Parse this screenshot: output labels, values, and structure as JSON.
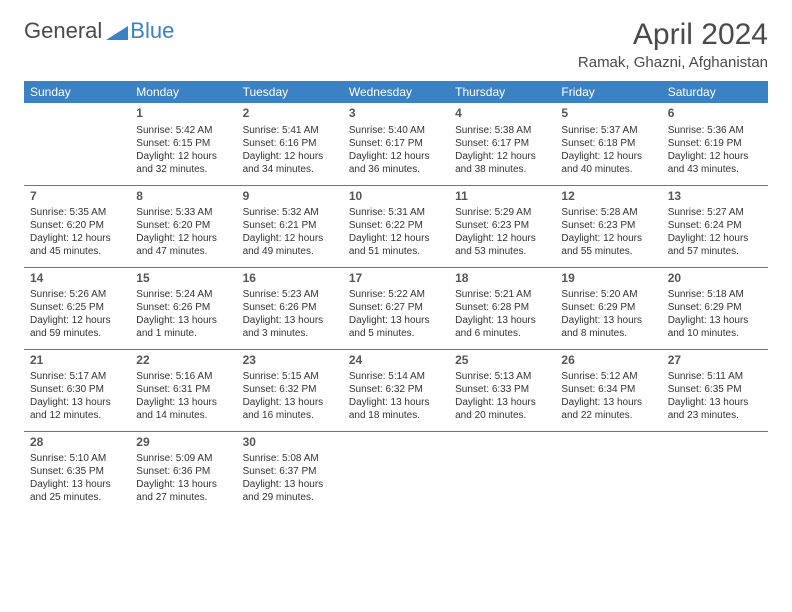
{
  "logo": {
    "text1": "General",
    "text2": "Blue"
  },
  "header": {
    "month_title": "April 2024",
    "location": "Ramak, Ghazni, Afghanistan"
  },
  "colors": {
    "accent": "#3b82c4",
    "text": "#333333",
    "bg": "#ffffff"
  },
  "days_of_week": [
    "Sunday",
    "Monday",
    "Tuesday",
    "Wednesday",
    "Thursday",
    "Friday",
    "Saturday"
  ],
  "weeks": [
    [
      null,
      {
        "n": "1",
        "sr": "Sunrise: 5:42 AM",
        "ss": "Sunset: 6:15 PM",
        "d1": "Daylight: 12 hours",
        "d2": "and 32 minutes."
      },
      {
        "n": "2",
        "sr": "Sunrise: 5:41 AM",
        "ss": "Sunset: 6:16 PM",
        "d1": "Daylight: 12 hours",
        "d2": "and 34 minutes."
      },
      {
        "n": "3",
        "sr": "Sunrise: 5:40 AM",
        "ss": "Sunset: 6:17 PM",
        "d1": "Daylight: 12 hours",
        "d2": "and 36 minutes."
      },
      {
        "n": "4",
        "sr": "Sunrise: 5:38 AM",
        "ss": "Sunset: 6:17 PM",
        "d1": "Daylight: 12 hours",
        "d2": "and 38 minutes."
      },
      {
        "n": "5",
        "sr": "Sunrise: 5:37 AM",
        "ss": "Sunset: 6:18 PM",
        "d1": "Daylight: 12 hours",
        "d2": "and 40 minutes."
      },
      {
        "n": "6",
        "sr": "Sunrise: 5:36 AM",
        "ss": "Sunset: 6:19 PM",
        "d1": "Daylight: 12 hours",
        "d2": "and 43 minutes."
      }
    ],
    [
      {
        "n": "7",
        "sr": "Sunrise: 5:35 AM",
        "ss": "Sunset: 6:20 PM",
        "d1": "Daylight: 12 hours",
        "d2": "and 45 minutes."
      },
      {
        "n": "8",
        "sr": "Sunrise: 5:33 AM",
        "ss": "Sunset: 6:20 PM",
        "d1": "Daylight: 12 hours",
        "d2": "and 47 minutes."
      },
      {
        "n": "9",
        "sr": "Sunrise: 5:32 AM",
        "ss": "Sunset: 6:21 PM",
        "d1": "Daylight: 12 hours",
        "d2": "and 49 minutes."
      },
      {
        "n": "10",
        "sr": "Sunrise: 5:31 AM",
        "ss": "Sunset: 6:22 PM",
        "d1": "Daylight: 12 hours",
        "d2": "and 51 minutes."
      },
      {
        "n": "11",
        "sr": "Sunrise: 5:29 AM",
        "ss": "Sunset: 6:23 PM",
        "d1": "Daylight: 12 hours",
        "d2": "and 53 minutes."
      },
      {
        "n": "12",
        "sr": "Sunrise: 5:28 AM",
        "ss": "Sunset: 6:23 PM",
        "d1": "Daylight: 12 hours",
        "d2": "and 55 minutes."
      },
      {
        "n": "13",
        "sr": "Sunrise: 5:27 AM",
        "ss": "Sunset: 6:24 PM",
        "d1": "Daylight: 12 hours",
        "d2": "and 57 minutes."
      }
    ],
    [
      {
        "n": "14",
        "sr": "Sunrise: 5:26 AM",
        "ss": "Sunset: 6:25 PM",
        "d1": "Daylight: 12 hours",
        "d2": "and 59 minutes."
      },
      {
        "n": "15",
        "sr": "Sunrise: 5:24 AM",
        "ss": "Sunset: 6:26 PM",
        "d1": "Daylight: 13 hours",
        "d2": "and 1 minute."
      },
      {
        "n": "16",
        "sr": "Sunrise: 5:23 AM",
        "ss": "Sunset: 6:26 PM",
        "d1": "Daylight: 13 hours",
        "d2": "and 3 minutes."
      },
      {
        "n": "17",
        "sr": "Sunrise: 5:22 AM",
        "ss": "Sunset: 6:27 PM",
        "d1": "Daylight: 13 hours",
        "d2": "and 5 minutes."
      },
      {
        "n": "18",
        "sr": "Sunrise: 5:21 AM",
        "ss": "Sunset: 6:28 PM",
        "d1": "Daylight: 13 hours",
        "d2": "and 6 minutes."
      },
      {
        "n": "19",
        "sr": "Sunrise: 5:20 AM",
        "ss": "Sunset: 6:29 PM",
        "d1": "Daylight: 13 hours",
        "d2": "and 8 minutes."
      },
      {
        "n": "20",
        "sr": "Sunrise: 5:18 AM",
        "ss": "Sunset: 6:29 PM",
        "d1": "Daylight: 13 hours",
        "d2": "and 10 minutes."
      }
    ],
    [
      {
        "n": "21",
        "sr": "Sunrise: 5:17 AM",
        "ss": "Sunset: 6:30 PM",
        "d1": "Daylight: 13 hours",
        "d2": "and 12 minutes."
      },
      {
        "n": "22",
        "sr": "Sunrise: 5:16 AM",
        "ss": "Sunset: 6:31 PM",
        "d1": "Daylight: 13 hours",
        "d2": "and 14 minutes."
      },
      {
        "n": "23",
        "sr": "Sunrise: 5:15 AM",
        "ss": "Sunset: 6:32 PM",
        "d1": "Daylight: 13 hours",
        "d2": "and 16 minutes."
      },
      {
        "n": "24",
        "sr": "Sunrise: 5:14 AM",
        "ss": "Sunset: 6:32 PM",
        "d1": "Daylight: 13 hours",
        "d2": "and 18 minutes."
      },
      {
        "n": "25",
        "sr": "Sunrise: 5:13 AM",
        "ss": "Sunset: 6:33 PM",
        "d1": "Daylight: 13 hours",
        "d2": "and 20 minutes."
      },
      {
        "n": "26",
        "sr": "Sunrise: 5:12 AM",
        "ss": "Sunset: 6:34 PM",
        "d1": "Daylight: 13 hours",
        "d2": "and 22 minutes."
      },
      {
        "n": "27",
        "sr": "Sunrise: 5:11 AM",
        "ss": "Sunset: 6:35 PM",
        "d1": "Daylight: 13 hours",
        "d2": "and 23 minutes."
      }
    ],
    [
      {
        "n": "28",
        "sr": "Sunrise: 5:10 AM",
        "ss": "Sunset: 6:35 PM",
        "d1": "Daylight: 13 hours",
        "d2": "and 25 minutes."
      },
      {
        "n": "29",
        "sr": "Sunrise: 5:09 AM",
        "ss": "Sunset: 6:36 PM",
        "d1": "Daylight: 13 hours",
        "d2": "and 27 minutes."
      },
      {
        "n": "30",
        "sr": "Sunrise: 5:08 AM",
        "ss": "Sunset: 6:37 PM",
        "d1": "Daylight: 13 hours",
        "d2": "and 29 minutes."
      },
      null,
      null,
      null,
      null
    ]
  ]
}
